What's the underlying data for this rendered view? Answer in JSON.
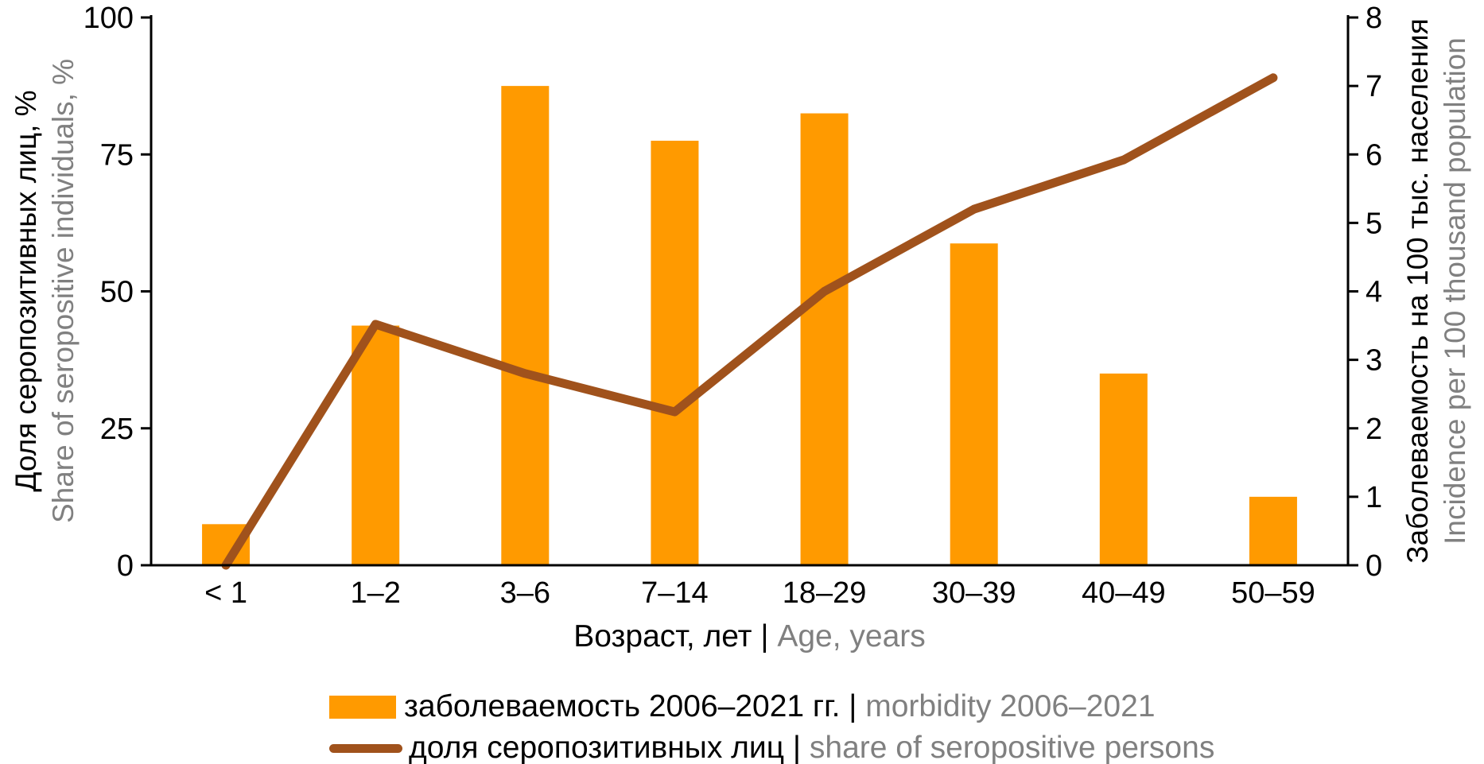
{
  "chart_data": {
    "type": "combo-bar-line",
    "categories": [
      "< 1",
      "1–2",
      "3–6",
      "7–14",
      "18–29",
      "30–39",
      "40–49",
      "50–59"
    ],
    "series": [
      {
        "name": "заболеваемость 2006–2021 гг. | morbidity 2006–2021",
        "type": "bar",
        "axis": "right",
        "color": "#FF9A00",
        "values": [
          0.6,
          3.5,
          7.0,
          6.2,
          6.6,
          4.7,
          2.8,
          1.0
        ]
      },
      {
        "name": "доля серопозитивных лиц | share of seropositive persons",
        "type": "line",
        "axis": "left",
        "color": "#A0521C",
        "values": [
          0,
          44,
          35,
          28,
          50,
          65,
          74,
          89
        ]
      }
    ],
    "axes": {
      "left": {
        "min": 0,
        "max": 100,
        "tick_step": 25,
        "ticks": [
          0,
          25,
          50,
          75,
          100
        ],
        "title_ru": "Доля серопозитивных лиц, %",
        "title_en": "Share of seropositive individuals, %"
      },
      "right": {
        "min": 0,
        "max": 8,
        "tick_step": 1,
        "ticks": [
          0,
          1,
          2,
          3,
          4,
          5,
          6,
          7,
          8
        ],
        "title_ru": "Заболеваемость на 100 тыс. населения",
        "title_en": "Incidence per 100 thousand population"
      },
      "x": {
        "title_ru": "Возраст, лет |",
        "title_en": "Age, years"
      }
    },
    "legend": [
      {
        "swatch": "bar",
        "label_ru": "заболеваемость 2006–2021 гг. |",
        "label_en": "morbidity 2006–2021"
      },
      {
        "swatch": "line",
        "label_ru": "доля серопозитивных лиц |",
        "label_en": "share of seropositive persons"
      }
    ],
    "grid": false,
    "legend_position": "bottom-left"
  },
  "colors": {
    "bar": "#FF9A00",
    "line": "#A0521C",
    "axis": "#000000",
    "gray_text": "#808080",
    "black_text": "#000000"
  }
}
